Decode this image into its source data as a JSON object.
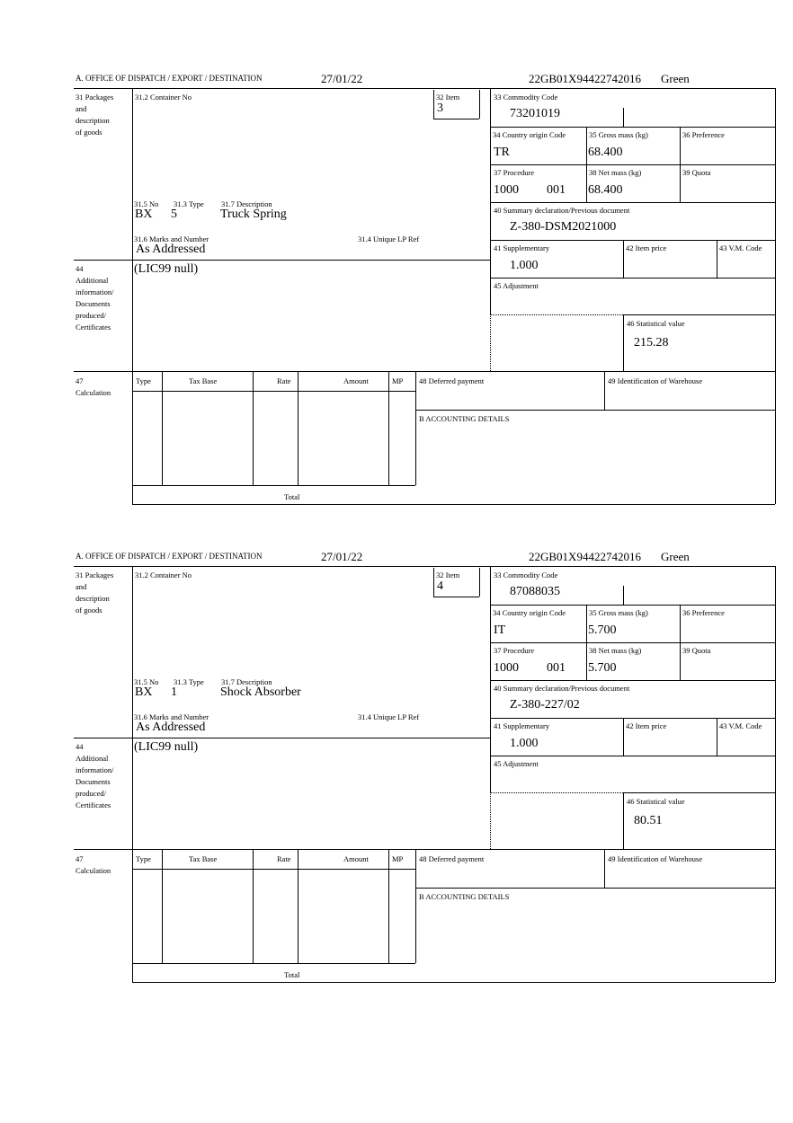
{
  "labels": {
    "office": "A. OFFICE OF DISPATCH / EXPORT / DESTINATION",
    "packages": [
      "31 Packages",
      "and",
      "description",
      "of goods"
    ],
    "container": "31.2 Container No",
    "item": "32 Item",
    "no": "31.5 No",
    "type": "31.3 Type",
    "description": "31.7 Description",
    "marks": "31.6 Marks and Number",
    "unique_ref": "31.4 Unique LP Ref",
    "commodity": "33 Commodity Code",
    "country": "34 Country origin Code",
    "gross": "35 Gross mass (kg)",
    "preference": "36 Preference",
    "procedure": "37 Procedure",
    "net": "38 Net mass (kg)",
    "quota": "39 Quota",
    "summary": "40 Summary declaration/Previous document",
    "supplementary": "41 Supplementary",
    "item_price": "42 Item price",
    "vm_code": "43 V.M. Code",
    "additional": [
      "44",
      "Additional",
      "information/",
      "Documents",
      "produced/",
      "Certificates"
    ],
    "adjustment": "45 Adjustment",
    "statistical": "46 Statistical value",
    "calculation": [
      "47",
      "Calculation"
    ],
    "calc_cols": [
      "Type",
      "Tax Base",
      "Rate",
      "Amount",
      "MP"
    ],
    "total": "Total",
    "deferred": "48 Deferred payment",
    "warehouse": "49 Identification of Warehouse",
    "accounting": "B ACCOUNTING DETAILS"
  },
  "forms": [
    {
      "date": "27/01/22",
      "reference": "22GB01X94422742016",
      "route": "Green",
      "item": "3",
      "pkg_no": "BX",
      "pkg_type": "5",
      "description": "Truck Spring",
      "marks": "As Addressed",
      "commodity": "73201019",
      "country": "TR",
      "gross": "68.400",
      "procedure": "1000",
      "procedure_sub": "001",
      "net": "68.400",
      "summary": "Z-380-DSM2021000",
      "supplementary": "1.000",
      "additional": "(LIC99 null)",
      "statistical": "215.28"
    },
    {
      "date": "27/01/22",
      "reference": "22GB01X94422742016",
      "route": "Green",
      "item": "4",
      "pkg_no": "BX",
      "pkg_type": "1",
      "description": "Shock Absorber",
      "marks": "As Addressed",
      "commodity": "87088035",
      "country": "IT",
      "gross": "5.700",
      "procedure": "1000",
      "procedure_sub": "001",
      "net": "5.700",
      "summary": "Z-380-227/02",
      "supplementary": "1.000",
      "additional": "(LIC99 null)",
      "statistical": "80.51"
    }
  ]
}
